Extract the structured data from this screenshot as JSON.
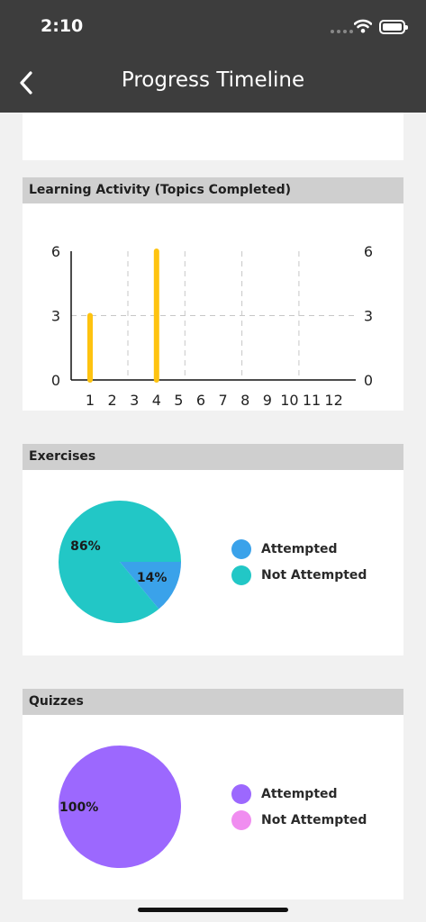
{
  "status_bar": {
    "time": "2:10"
  },
  "nav": {
    "title": "Progress Timeline"
  },
  "activity": {
    "title": "Learning Activity (Topics Completed)",
    "chart_data": {
      "type": "bar",
      "categories": [
        "1",
        "2",
        "3",
        "4",
        "5",
        "6",
        "7",
        "8",
        "9",
        "10",
        "11",
        "12"
      ],
      "values": [
        3,
        0,
        0,
        6,
        0,
        0,
        0,
        0,
        0,
        0,
        0,
        0
      ],
      "ylim": [
        0,
        6
      ],
      "yticks": [
        "0",
        "3",
        "6"
      ],
      "grid": true,
      "colors": {
        "bar": "#fec310",
        "grid": "#c7c7c7",
        "axis": "#111111"
      }
    }
  },
  "exercises": {
    "title": "Exercises",
    "chart_data": {
      "type": "pie",
      "labels": [
        "Attempted",
        "Not Attempted"
      ],
      "values": [
        14,
        86
      ],
      "value_labels": [
        "14%",
        "86%"
      ],
      "colors": [
        "#3aa2ea",
        "#22c7c6"
      ]
    },
    "legend": [
      {
        "label": "Attempted",
        "color": "#3aa2ea"
      },
      {
        "label": "Not Attempted",
        "color": "#22c7c6"
      }
    ]
  },
  "quizzes": {
    "title": "Quizzes",
    "chart_data": {
      "type": "pie",
      "labels": [
        "Attempted",
        "Not Attempted"
      ],
      "values": [
        100,
        0
      ],
      "value_labels": [
        "100%"
      ],
      "colors": [
        "#9c68fe",
        "#f08df0"
      ]
    },
    "legend": [
      {
        "label": "Attempted",
        "color": "#9c68fe"
      },
      {
        "label": "Not Attempted",
        "color": "#f08df0"
      }
    ]
  }
}
